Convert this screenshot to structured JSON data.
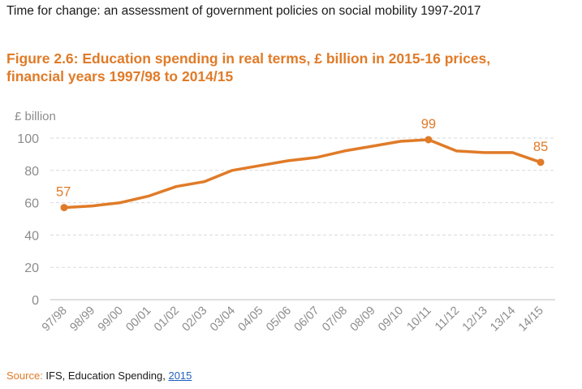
{
  "header": {
    "text": "Time for change: an assessment of government policies on social mobility 1997-2017"
  },
  "figure": {
    "title_line1": "Figure 2.6: Education spending in real terms, £ billion in 2015-16 prices,",
    "title_line2": "financial years 1997/98 to 2014/15"
  },
  "source": {
    "label": "Source:",
    "text": " IFS, Education Spending, ",
    "link": "2015"
  },
  "colors": {
    "line": "#e07b28",
    "grid": "#d9d9d9",
    "tick": "#8c8c8c",
    "annotation": "#e07b28"
  },
  "chart_data": {
    "type": "line",
    "ylabel": "£ billion",
    "ylim": [
      0,
      100
    ],
    "yticks": [
      0,
      20,
      40,
      60,
      80,
      100
    ],
    "grid": true,
    "categories": [
      "97/98",
      "98/99",
      "99/00",
      "00/01",
      "01/02",
      "02/03",
      "03/04",
      "04/05",
      "05/06",
      "06/07",
      "07/08",
      "08/09",
      "09/10",
      "10/11",
      "11/12",
      "12/13",
      "13/14",
      "14/15"
    ],
    "series": [
      {
        "values": [
          57,
          58,
          60,
          64,
          70,
          73,
          80,
          83,
          86,
          88,
          92,
          95,
          98,
          99,
          92,
          91,
          91,
          85
        ]
      }
    ],
    "annotations": [
      {
        "index": 0,
        "label": "57"
      },
      {
        "index": 13,
        "label": "99"
      },
      {
        "index": 17,
        "label": "85"
      }
    ]
  }
}
